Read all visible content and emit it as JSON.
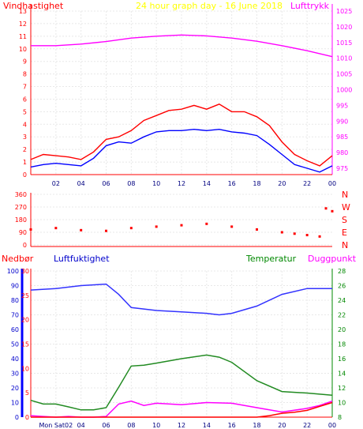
{
  "chart_data": [
    {
      "type": "line",
      "title": "24 hour graph day - 16 June 2018",
      "ylabel_left": "Vindhastighet",
      "ylabel_right": "Lufttrykk",
      "x_ticks": [
        "02",
        "04",
        "06",
        "08",
        "10",
        "12",
        "14",
        "16",
        "18",
        "20",
        "22",
        "00"
      ],
      "y_left_ticks": [
        "0",
        "1",
        "2",
        "3",
        "4",
        "5",
        "6",
        "7",
        "8",
        "9",
        "10",
        "11",
        "12",
        "13"
      ],
      "y_right_ticks": [
        "975",
        "980",
        "985",
        "990",
        "995",
        "1000",
        "1005",
        "1010",
        "1015",
        "1020",
        "1025"
      ],
      "ylim_left": [
        0,
        13
      ],
      "ylim_right": [
        973,
        1025
      ],
      "series": [
        {
          "color": "#ff00ff",
          "axis": "right",
          "x": [
            0,
            2,
            4,
            6,
            8,
            10,
            12,
            14,
            16,
            18,
            20,
            22,
            24
          ],
          "values": [
            1014,
            1014,
            1014.5,
            1015.3,
            1016.4,
            1017,
            1017.4,
            1017.1,
            1016.4,
            1015.4,
            1014,
            1012.4,
            1010.5
          ]
        },
        {
          "color": "#ff0000",
          "axis": "left",
          "x": [
            0,
            1,
            2,
            3,
            4,
            5,
            6,
            7,
            8,
            9,
            10,
            11,
            12,
            13,
            14,
            15,
            16,
            17,
            18,
            19,
            20,
            21,
            22,
            23,
            24
          ],
          "values": [
            1.2,
            1.6,
            1.5,
            1.4,
            1.2,
            1.8,
            2.8,
            3,
            3.5,
            4.3,
            4.7,
            5.1,
            5.2,
            5.5,
            5.2,
            5.6,
            5,
            5,
            4.6,
            3.9,
            2.6,
            1.6,
            1.1,
            0.7,
            1.5
          ]
        },
        {
          "color": "#0000ff",
          "axis": "left",
          "x": [
            0,
            1,
            2,
            3,
            4,
            5,
            6,
            7,
            8,
            9,
            10,
            11,
            12,
            13,
            14,
            15,
            16,
            17,
            18,
            19,
            20,
            21,
            22,
            23,
            24
          ],
          "values": [
            0.6,
            0.8,
            0.9,
            0.8,
            0.7,
            1.3,
            2.3,
            2.6,
            2.5,
            3,
            3.4,
            3.5,
            3.5,
            3.6,
            3.5,
            3.6,
            3.4,
            3.3,
            3.1,
            2.4,
            1.6,
            0.8,
            0.5,
            0.2,
            0.7
          ]
        }
      ]
    },
    {
      "type": "scatter",
      "ylabel_right": [
        "N",
        "W",
        "S",
        "E",
        "N"
      ],
      "x_ticks": [],
      "y_ticks": [
        "360",
        "270",
        "180",
        "90",
        "0"
      ],
      "ylim": [
        0,
        360
      ],
      "series": [
        {
          "color": "#ff0000",
          "x": [
            0,
            2,
            4,
            6,
            8,
            10,
            12,
            14,
            16,
            18,
            20,
            21,
            22,
            23,
            23.5,
            24
          ],
          "values": [
            110,
            120,
            105,
            100,
            120,
            130,
            140,
            150,
            130,
            110,
            90,
            80,
            70,
            60,
            260,
            240
          ]
        }
      ]
    },
    {
      "type": "line",
      "labels_top": [
        "Nedbør",
        "Luftfuktighet",
        "Temperatur",
        "Duggpunkt"
      ],
      "x_ticks": [
        "Mon Sat02",
        "04",
        "06",
        "08",
        "10",
        "12",
        "14",
        "16",
        "18",
        "20",
        "22",
        "00"
      ],
      "y_left_ticks": [
        "0",
        "10",
        "20",
        "30",
        "40",
        "50",
        "60",
        "70",
        "80",
        "90",
        "100"
      ],
      "y_precip_ticks": [
        "0",
        "5",
        "10",
        "15",
        "20",
        "25",
        "30"
      ],
      "y_right_ticks": [
        "8",
        "10",
        "12",
        "14",
        "16",
        "18",
        "20",
        "22",
        "24",
        "26",
        "28"
      ],
      "ylim_left": [
        0,
        100
      ],
      "ylim_precip": [
        0,
        30
      ],
      "ylim_right": [
        8,
        28
      ],
      "series": [
        {
          "color": "#3333ff",
          "axis": "left",
          "name": "Luftfuktighet",
          "x": [
            0,
            2,
            4,
            6,
            7,
            8,
            10,
            12,
            14,
            15,
            16,
            18,
            20,
            22,
            24
          ],
          "values": [
            87,
            88,
            90,
            91,
            84,
            75,
            73,
            72,
            71,
            70,
            71,
            76,
            84,
            88,
            88
          ]
        },
        {
          "color": "#228b22",
          "axis": "right",
          "name": "Temperatur",
          "x": [
            0,
            1,
            2,
            3,
            4,
            5,
            6,
            7,
            8,
            9,
            10,
            12,
            14,
            15,
            16,
            18,
            20,
            22,
            24
          ],
          "values": [
            10.3,
            9.8,
            9.8,
            9.4,
            9,
            9,
            9.3,
            12.1,
            15,
            15.1,
            15.4,
            16,
            16.5,
            16.2,
            15.5,
            13,
            11.5,
            11.3,
            11
          ]
        },
        {
          "color": "#ff00ff",
          "axis": "right",
          "name": "Duggpunkt",
          "x": [
            0,
            1,
            2,
            3,
            4,
            5,
            6,
            7,
            8,
            9,
            10,
            12,
            14,
            16,
            18,
            20,
            22,
            23,
            24
          ],
          "values": [
            8.2,
            8.1,
            8,
            8.1,
            8,
            8,
            8.1,
            9.8,
            10.2,
            9.6,
            9.9,
            9.7,
            10,
            9.9,
            9.3,
            8.7,
            9.2,
            9.6,
            10.2
          ]
        },
        {
          "color": "#ff0000",
          "axis": "precip",
          "name": "Nedbør",
          "x": [
            0,
            18,
            19,
            20,
            21,
            22,
            23,
            24
          ],
          "values": [
            0,
            0,
            0.3,
            0.8,
            1,
            1.4,
            2.2,
            3
          ]
        }
      ]
    }
  ]
}
